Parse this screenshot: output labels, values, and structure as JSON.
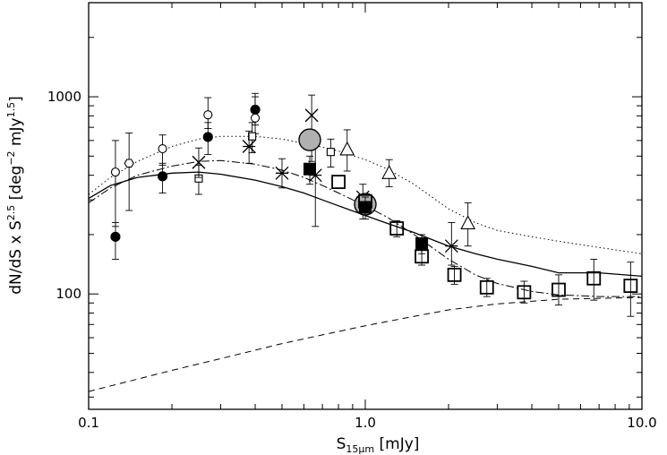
{
  "chart_data": {
    "type": "scatter",
    "title": "",
    "xlabel": {
      "base": "S",
      "sub": "15μm",
      "unit": " [mJy]"
    },
    "ylabel": {
      "a": "dN/dS x S",
      "exp1": "2.5",
      "b": " [deg",
      "exp2": "−2",
      "c": " mJy",
      "exp3": "1.5",
      "d": "]"
    },
    "x_scale": "log",
    "y_scale": "log",
    "xlim": [
      0.1,
      10.0
    ],
    "ylim": [
      26,
      3000
    ],
    "x_ticks": [
      {
        "v": 0.1,
        "label": "0.1"
      },
      {
        "v": 1.0,
        "label": "1.0"
      },
      {
        "v": 10.0,
        "label": "10.0"
      }
    ],
    "y_ticks": [
      {
        "v": 100,
        "label": "100"
      },
      {
        "v": 1000,
        "label": "1000"
      }
    ],
    "grid": false,
    "legend": "none",
    "model_curves": [
      {
        "style": "solid",
        "x": [
          0.1,
          0.12,
          0.15,
          0.2,
          0.25,
          0.3,
          0.4,
          0.5,
          0.6,
          0.7,
          0.8,
          1.0,
          1.2,
          1.5,
          2.0,
          2.5,
          3.0,
          4.0,
          5.0,
          7.0,
          10.0
        ],
        "y": [
          305,
          355,
          390,
          410,
          415,
          405,
          378,
          350,
          325,
          300,
          280,
          250,
          228,
          205,
          175,
          160,
          150,
          138,
          128,
          128,
          123
        ]
      },
      {
        "style": "dotted",
        "x": [
          0.1,
          0.12,
          0.15,
          0.2,
          0.25,
          0.3,
          0.4,
          0.5,
          0.6,
          0.7,
          0.8,
          1.0,
          1.2,
          1.5,
          2.0,
          2.5,
          3.0,
          4.0,
          5.0,
          7.0,
          10.0
        ],
        "y": [
          320,
          390,
          470,
          560,
          610,
          630,
          630,
          610,
          580,
          555,
          530,
          480,
          430,
          360,
          270,
          230,
          210,
          195,
          185,
          172,
          160
        ]
      },
      {
        "style": "dashdot",
        "x": [
          0.1,
          0.12,
          0.15,
          0.2,
          0.25,
          0.3,
          0.4,
          0.5,
          0.6,
          0.7,
          0.8,
          1.0,
          1.2,
          1.5,
          2.0,
          2.5,
          3.0,
          4.0,
          5.0,
          7.0,
          10.0
        ],
        "y": [
          290,
          345,
          400,
          445,
          470,
          475,
          455,
          425,
          390,
          355,
          325,
          280,
          245,
          200,
          150,
          125,
          113,
          103,
          99,
          97,
          97
        ]
      },
      {
        "style": "dashed",
        "x": [
          0.1,
          0.15,
          0.2,
          0.3,
          0.5,
          0.7,
          1.0,
          1.5,
          2.0,
          3.0,
          5.0,
          7.0,
          10.0
        ],
        "y": [
          32,
          37,
          41,
          47,
          56,
          62,
          69,
          77,
          83,
          89,
          94,
          95,
          96
        ]
      }
    ],
    "series": [
      {
        "marker": "filled-circle",
        "points": [
          {
            "x": 0.125,
            "y": 195,
            "lo": 150,
            "hi": 230
          },
          {
            "x": 0.185,
            "y": 395,
            "lo": 325,
            "hi": 460
          },
          {
            "x": 0.27,
            "y": 625,
            "lo": 510,
            "hi": 740
          },
          {
            "x": 0.4,
            "y": 860,
            "lo": 720,
            "hi": 1000
          }
        ]
      },
      {
        "marker": "open-circle",
        "points": [
          {
            "x": 0.125,
            "y": 415,
            "lo": 220,
            "hi": 600
          },
          {
            "x": 0.185,
            "y": 545,
            "lo": 450,
            "hi": 640
          },
          {
            "x": 0.27,
            "y": 810,
            "lo": 690,
            "hi": 990
          },
          {
            "x": 0.4,
            "y": 780,
            "lo": 650,
            "hi": 1040
          }
        ]
      },
      {
        "marker": "open-hexagon",
        "points": [
          {
            "x": 0.14,
            "y": 460,
            "lo": 265,
            "hi": 655
          }
        ]
      },
      {
        "marker": "small-open-square",
        "points": [
          {
            "x": 0.25,
            "y": 385,
            "lo": 320,
            "hi": 450
          },
          {
            "x": 0.39,
            "y": 630,
            "lo": 520,
            "hi": 740
          },
          {
            "x": 0.64,
            "y": 575,
            "lo": 470,
            "hi": 680
          },
          {
            "x": 0.75,
            "y": 525,
            "lo": 440,
            "hi": 610
          }
        ]
      },
      {
        "marker": "x-cross",
        "points": [
          {
            "x": 0.25,
            "y": 465,
            "lo": 390,
            "hi": 550
          },
          {
            "x": 0.64,
            "y": 805,
            "lo": 630,
            "hi": 1020
          }
        ]
      },
      {
        "marker": "asterisk",
        "points": [
          {
            "x": 0.38,
            "y": 560,
            "lo": 460,
            "hi": 670
          },
          {
            "x": 0.5,
            "y": 410,
            "lo": 345,
            "hi": 485
          },
          {
            "x": 0.66,
            "y": 400,
            "lo": 220,
            "hi": 560
          },
          {
            "x": 0.98,
            "y": 310,
            "lo": 240,
            "hi": 360
          },
          {
            "x": 2.05,
            "y": 175,
            "lo": 140,
            "hi": 230
          }
        ]
      },
      {
        "marker": "large-gray-circle",
        "points": [
          {
            "x": 0.63,
            "y": 605,
            "lo": null,
            "hi": null
          },
          {
            "x": 1.0,
            "y": 285,
            "lo": null,
            "hi": null
          }
        ]
      },
      {
        "marker": "filled-square",
        "points": [
          {
            "x": 0.63,
            "y": 430,
            "lo": 360,
            "hi": 500
          },
          {
            "x": 1.0,
            "y": 275,
            "lo": 240,
            "hi": 310
          },
          {
            "x": 1.6,
            "y": 180,
            "lo": 160,
            "hi": 200
          }
        ]
      },
      {
        "marker": "open-triangle",
        "points": [
          {
            "x": 0.86,
            "y": 540,
            "lo": 420,
            "hi": 680
          },
          {
            "x": 1.22,
            "y": 410,
            "lo": 350,
            "hi": 480
          },
          {
            "x": 2.35,
            "y": 228,
            "lo": 175,
            "hi": 290
          }
        ]
      },
      {
        "marker": "large-open-square",
        "points": [
          {
            "x": 0.8,
            "y": 370,
            "lo": null,
            "hi": null
          },
          {
            "x": 1.0,
            "y": 295,
            "lo": null,
            "hi": null
          },
          {
            "x": 1.3,
            "y": 215,
            "lo": 195,
            "hi": 235
          },
          {
            "x": 1.6,
            "y": 155,
            "lo": 140,
            "hi": 170
          },
          {
            "x": 2.1,
            "y": 125,
            "lo": 112,
            "hi": 138
          },
          {
            "x": 2.75,
            "y": 108,
            "lo": 97,
            "hi": 120
          },
          {
            "x": 3.75,
            "y": 102,
            "lo": 90,
            "hi": 116
          },
          {
            "x": 5.0,
            "y": 105,
            "lo": 88,
            "hi": 125
          },
          {
            "x": 6.7,
            "y": 120,
            "lo": 93,
            "hi": 150
          },
          {
            "x": 9.1,
            "y": 110,
            "lo": 77,
            "hi": 145
          }
        ]
      }
    ]
  }
}
